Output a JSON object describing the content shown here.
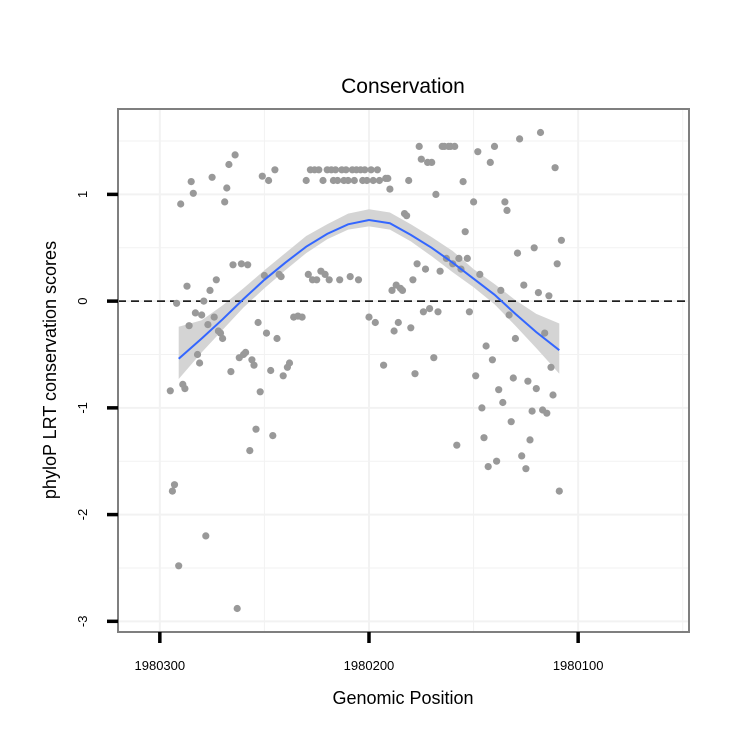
{
  "chart_data": {
    "type": "scatter",
    "title": "Conservation",
    "xlabel": "Genomic Position",
    "ylabel": "phyloP LRT conservation scores",
    "x_reversed": true,
    "xlim": [
      1980320,
      1980047
    ],
    "ylim": [
      -3.1,
      1.8
    ],
    "x_ticks": [
      1980300,
      1980200,
      1980100
    ],
    "x_tick_labels": [
      "1980300",
      "1980200",
      "1980100"
    ],
    "y_ticks": [
      -3,
      -2,
      -1,
      0,
      1
    ],
    "y_tick_labels": [
      "-3",
      "-2",
      "-1",
      "0",
      "1"
    ],
    "reference_line": {
      "y": 0,
      "style": "dashed",
      "color": "#000000"
    },
    "grid": true,
    "colors": {
      "points": "#999999",
      "smooth": "#3366ff",
      "ribbon": "#d4d4d4",
      "panel_border": "#7f7f7f",
      "grid": "#f2f2f2"
    },
    "series": [
      {
        "kind": "points",
        "points": [
          [
            1980295,
            -0.84
          ],
          [
            1980294,
            -1.78
          ],
          [
            1980293,
            -1.72
          ],
          [
            1980292,
            -0.02
          ],
          [
            1980291,
            -2.48
          ],
          [
            1980290,
            0.91
          ],
          [
            1980289,
            -0.78
          ],
          [
            1980288,
            -0.82
          ],
          [
            1980287,
            0.14
          ],
          [
            1980286,
            -0.23
          ],
          [
            1980285,
            1.12
          ],
          [
            1980284,
            1.01
          ],
          [
            1980283,
            -0.11
          ],
          [
            1980282,
            -0.5
          ],
          [
            1980281,
            -0.58
          ],
          [
            1980280,
            -0.13
          ],
          [
            1980279,
            0.0
          ],
          [
            1980278,
            -2.2
          ],
          [
            1980277,
            -0.22
          ],
          [
            1980276,
            0.1
          ],
          [
            1980275,
            1.16
          ],
          [
            1980274,
            -0.15
          ],
          [
            1980273,
            0.2
          ],
          [
            1980272,
            -0.28
          ],
          [
            1980271,
            -0.3
          ],
          [
            1980270,
            -0.35
          ],
          [
            1980269,
            0.93
          ],
          [
            1980268,
            1.06
          ],
          [
            1980267,
            1.28
          ],
          [
            1980266,
            -0.66
          ],
          [
            1980265,
            0.34
          ],
          [
            1980264,
            1.37
          ],
          [
            1980263,
            -2.88
          ],
          [
            1980262,
            -0.53
          ],
          [
            1980261,
            0.35
          ],
          [
            1980260,
            -0.5
          ],
          [
            1980259,
            -0.48
          ],
          [
            1980258,
            0.34
          ],
          [
            1980257,
            -1.4
          ],
          [
            1980256,
            -0.55
          ],
          [
            1980255,
            -0.6
          ],
          [
            1980254,
            -1.2
          ],
          [
            1980253,
            -0.2
          ],
          [
            1980252,
            -0.85
          ],
          [
            1980251,
            1.17
          ],
          [
            1980250,
            0.24
          ],
          [
            1980249,
            -0.3
          ],
          [
            1980248,
            1.13
          ],
          [
            1980247,
            -0.65
          ],
          [
            1980246,
            -1.26
          ],
          [
            1980245,
            1.23
          ],
          [
            1980244,
            -0.35
          ],
          [
            1980243,
            0.25
          ],
          [
            1980242,
            0.23
          ],
          [
            1980241,
            -0.7
          ],
          [
            1980239,
            -0.62
          ],
          [
            1980238,
            -0.58
          ],
          [
            1980236,
            -0.15
          ],
          [
            1980234,
            -0.14
          ],
          [
            1980232,
            -0.15
          ],
          [
            1980230,
            1.13
          ],
          [
            1980229,
            0.25
          ],
          [
            1980228,
            1.23
          ],
          [
            1980227,
            0.2
          ],
          [
            1980226,
            1.23
          ],
          [
            1980225,
            0.2
          ],
          [
            1980224,
            1.23
          ],
          [
            1980223,
            0.28
          ],
          [
            1980222,
            1.13
          ],
          [
            1980221,
            0.25
          ],
          [
            1980220,
            1.23
          ],
          [
            1980219,
            0.2
          ],
          [
            1980218,
            1.23
          ],
          [
            1980217,
            1.13
          ],
          [
            1980216,
            1.23
          ],
          [
            1980215,
            1.13
          ],
          [
            1980214,
            0.2
          ],
          [
            1980213,
            1.23
          ],
          [
            1980212,
            1.13
          ],
          [
            1980211,
            1.23
          ],
          [
            1980210,
            1.13
          ],
          [
            1980209,
            0.23
          ],
          [
            1980208,
            1.23
          ],
          [
            1980207,
            1.13
          ],
          [
            1980206,
            1.23
          ],
          [
            1980205,
            0.2
          ],
          [
            1980204,
            1.23
          ],
          [
            1980203,
            1.13
          ],
          [
            1980202,
            1.23
          ],
          [
            1980201,
            1.13
          ],
          [
            1980200,
            -0.15
          ],
          [
            1980199,
            1.23
          ],
          [
            1980198,
            1.13
          ],
          [
            1980197,
            -0.2
          ],
          [
            1980196,
            1.23
          ],
          [
            1980195,
            1.13
          ],
          [
            1980193,
            -0.6
          ],
          [
            1980192,
            1.15
          ],
          [
            1980191,
            1.15
          ],
          [
            1980190,
            1.05
          ],
          [
            1980189,
            0.1
          ],
          [
            1980188,
            -0.28
          ],
          [
            1980187,
            0.15
          ],
          [
            1980186,
            -0.2
          ],
          [
            1980185,
            0.12
          ],
          [
            1980184,
            0.1
          ],
          [
            1980183,
            0.82
          ],
          [
            1980182,
            0.8
          ],
          [
            1980181,
            1.13
          ],
          [
            1980180,
            -0.25
          ],
          [
            1980179,
            0.2
          ],
          [
            1980178,
            -0.68
          ],
          [
            1980177,
            0.35
          ],
          [
            1980176,
            1.45
          ],
          [
            1980175,
            1.33
          ],
          [
            1980174,
            -0.1
          ],
          [
            1980173,
            0.3
          ],
          [
            1980172,
            1.3
          ],
          [
            1980171,
            -0.07
          ],
          [
            1980170,
            1.3
          ],
          [
            1980169,
            -0.53
          ],
          [
            1980168,
            1.0
          ],
          [
            1980167,
            -0.1
          ],
          [
            1980166,
            0.28
          ],
          [
            1980165,
            1.45
          ],
          [
            1980164,
            1.45
          ],
          [
            1980163,
            0.4
          ],
          [
            1980162,
            1.45
          ],
          [
            1980161,
            1.45
          ],
          [
            1980160,
            0.35
          ],
          [
            1980159,
            1.45
          ],
          [
            1980158,
            -1.35
          ],
          [
            1980157,
            0.4
          ],
          [
            1980156,
            0.3
          ],
          [
            1980155,
            1.12
          ],
          [
            1980154,
            0.65
          ],
          [
            1980153,
            0.4
          ],
          [
            1980152,
            -0.1
          ],
          [
            1980150,
            0.93
          ],
          [
            1980149,
            -0.7
          ],
          [
            1980148,
            1.4
          ],
          [
            1980147,
            0.25
          ],
          [
            1980146,
            -1.0
          ],
          [
            1980145,
            -1.28
          ],
          [
            1980144,
            -0.42
          ],
          [
            1980143,
            -1.55
          ],
          [
            1980142,
            1.3
          ],
          [
            1980141,
            -0.55
          ],
          [
            1980140,
            1.45
          ],
          [
            1980139,
            -1.5
          ],
          [
            1980138,
            -0.83
          ],
          [
            1980137,
            0.1
          ],
          [
            1980136,
            -0.95
          ],
          [
            1980135,
            0.93
          ],
          [
            1980134,
            0.85
          ],
          [
            1980133,
            -0.13
          ],
          [
            1980132,
            -1.13
          ],
          [
            1980131,
            -0.72
          ],
          [
            1980130,
            -0.35
          ],
          [
            1980129,
            0.45
          ],
          [
            1980128,
            1.52
          ],
          [
            1980127,
            -1.45
          ],
          [
            1980126,
            0.15
          ],
          [
            1980125,
            -1.57
          ],
          [
            1980124,
            -0.75
          ],
          [
            1980123,
            -1.3
          ],
          [
            1980122,
            -1.03
          ],
          [
            1980121,
            0.5
          ],
          [
            1980120,
            -0.82
          ],
          [
            1980119,
            0.08
          ],
          [
            1980118,
            1.58
          ],
          [
            1980117,
            -1.02
          ],
          [
            1980116,
            -0.3
          ],
          [
            1980115,
            -1.05
          ],
          [
            1980114,
            0.05
          ],
          [
            1980113,
            -0.62
          ],
          [
            1980112,
            -0.88
          ],
          [
            1980111,
            1.25
          ],
          [
            1980110,
            0.35
          ],
          [
            1980109,
            -1.78
          ],
          [
            1980108,
            0.57
          ]
        ]
      },
      {
        "kind": "smooth",
        "x": [
          1980291,
          1980280,
          1980270,
          1980260,
          1980250,
          1980240,
          1980230,
          1980220,
          1980210,
          1980200,
          1980190,
          1980180,
          1980170,
          1980160,
          1980150,
          1980140,
          1980130,
          1980120,
          1980109
        ],
        "y": [
          -0.54,
          -0.35,
          -0.17,
          0.02,
          0.2,
          0.36,
          0.51,
          0.63,
          0.72,
          0.76,
          0.73,
          0.62,
          0.5,
          0.36,
          0.21,
          0.06,
          -0.12,
          -0.29,
          -0.46
        ],
        "lower": [
          -0.73,
          -0.48,
          -0.27,
          -0.06,
          0.12,
          0.29,
          0.45,
          0.58,
          0.67,
          0.7,
          0.67,
          0.56,
          0.42,
          0.27,
          0.13,
          -0.03,
          -0.23,
          -0.44,
          -0.68
        ],
        "upper": [
          -0.24,
          -0.18,
          -0.04,
          0.12,
          0.29,
          0.45,
          0.61,
          0.72,
          0.82,
          0.86,
          0.83,
          0.72,
          0.6,
          0.47,
          0.3,
          0.16,
          0.01,
          -0.12,
          -0.21
        ]
      }
    ]
  }
}
